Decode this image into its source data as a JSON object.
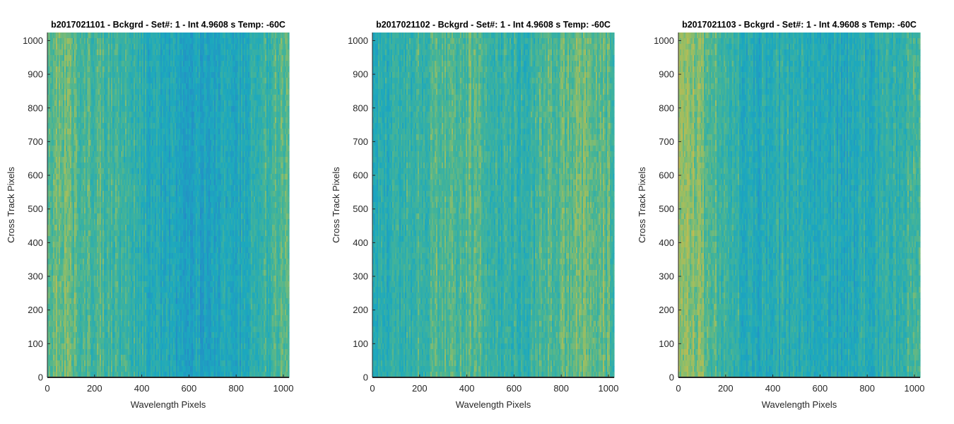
{
  "chart_data": [
    {
      "type": "heatmap",
      "title": "b2017021101 - Bckgrd - Set#: 1 - Int 4.9608 s Temp: -60C",
      "xlabel": "Wavelength Pixels",
      "ylabel": "Cross Track Pixels",
      "xlim": [
        0,
        1024
      ],
      "ylim": [
        0,
        1024
      ],
      "xticks": [
        0,
        200,
        400,
        600,
        800,
        1000
      ],
      "yticks": [
        0,
        100,
        200,
        300,
        400,
        500,
        600,
        700,
        800,
        900,
        1000
      ],
      "colormap": "parula",
      "column_profile": [
        0.62,
        0.68,
        0.58,
        0.55,
        0.52,
        0.45,
        0.38,
        0.32,
        0.28,
        0.26,
        0.27,
        0.3,
        0.34,
        0.42,
        0.5,
        0.58
      ]
    },
    {
      "type": "heatmap",
      "title": "b2017021102 - Bckgrd - Set#: 1 - Int 4.9608 s Temp: -60C",
      "xlabel": "Wavelength Pixels",
      "ylabel": "Cross Track Pixels",
      "xlim": [
        0,
        1024
      ],
      "ylim": [
        0,
        1024
      ],
      "xticks": [
        0,
        200,
        400,
        600,
        800,
        1000
      ],
      "yticks": [
        0,
        100,
        200,
        300,
        400,
        500,
        600,
        700,
        800,
        900,
        1000
      ],
      "colormap": "parula",
      "column_profile": [
        0.38,
        0.42,
        0.45,
        0.5,
        0.55,
        0.58,
        0.56,
        0.5,
        0.44,
        0.42,
        0.48,
        0.55,
        0.6,
        0.66,
        0.62,
        0.56
      ]
    },
    {
      "type": "heatmap",
      "title": "b2017021103 - Bckgrd - Set#: 1 - Int 4.9608 s Temp: -60C",
      "xlabel": "Wavelength Pixels",
      "ylabel": "Cross Track Pixels",
      "xlim": [
        0,
        1024
      ],
      "ylim": [
        0,
        1024
      ],
      "xticks": [
        0,
        200,
        400,
        600,
        800,
        1000
      ],
      "yticks": [
        0,
        100,
        200,
        300,
        400,
        500,
        600,
        700,
        800,
        900,
        1000
      ],
      "colormap": "parula",
      "column_profile": [
        0.82,
        0.72,
        0.6,
        0.48,
        0.38,
        0.34,
        0.36,
        0.4,
        0.38,
        0.32,
        0.3,
        0.33,
        0.38,
        0.42,
        0.46,
        0.5
      ]
    }
  ]
}
